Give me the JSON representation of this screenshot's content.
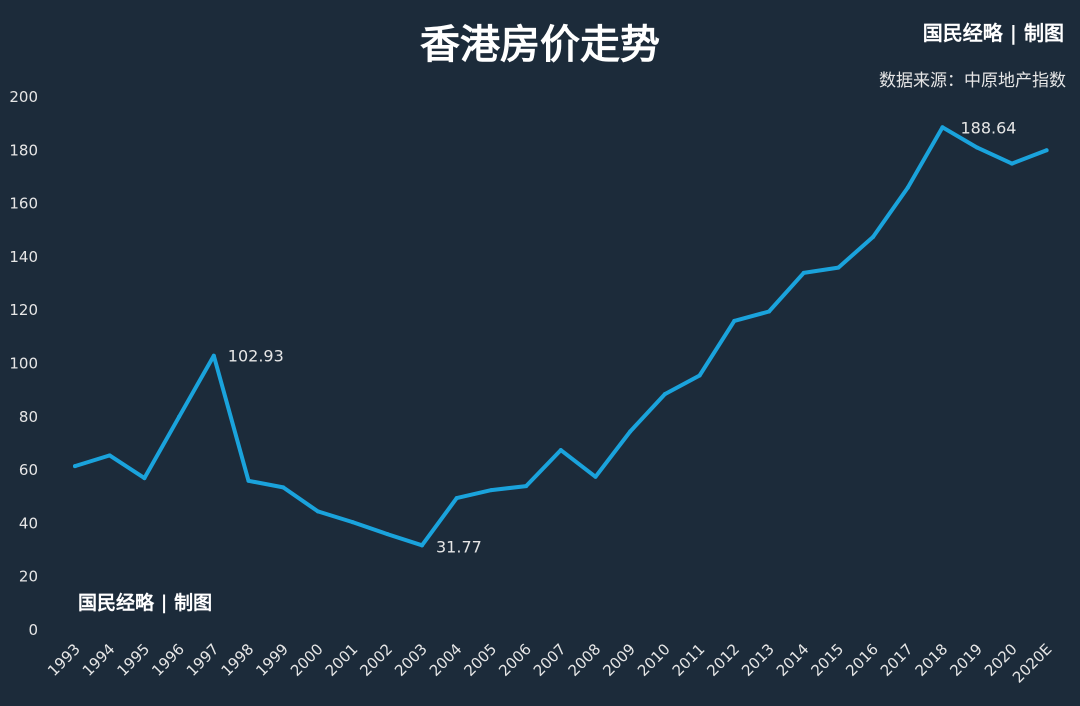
{
  "header": {
    "title": "香港房价走势",
    "brand": "国民经略 | 制图",
    "source": "数据来源：中原地产指数"
  },
  "watermark": {
    "text": "国民经略 | 制图"
  },
  "colors": {
    "background": "#1c2b3a",
    "line": "#1aa3dc",
    "text": "#e6e6e6"
  },
  "chart_data": {
    "type": "line",
    "title": "香港房价走势",
    "xlabel": "",
    "ylabel": "",
    "ylim": [
      0,
      200
    ],
    "yticks": [
      0,
      20,
      40,
      60,
      80,
      100,
      120,
      140,
      160,
      180,
      200
    ],
    "grid": false,
    "categories": [
      "1993",
      "1994",
      "1995",
      "1996",
      "1997",
      "1998",
      "1999",
      "2000",
      "2001",
      "2002",
      "2003",
      "2004",
      "2005",
      "2006",
      "2007",
      "2008",
      "2009",
      "2010",
      "2011",
      "2012",
      "2013",
      "2014",
      "2015",
      "2016",
      "2017",
      "2018",
      "2019",
      "2020",
      "2020E"
    ],
    "series": [
      {
        "values": [
          61.5,
          65.5,
          57,
          80,
          102.93,
          56,
          53.5,
          44.5,
          40.5,
          36,
          31.77,
          49.5,
          52.5,
          54,
          67.5,
          57.5,
          74.5,
          88.5,
          95.5,
          116,
          119.5,
          134,
          136,
          147.5,
          166,
          188.64,
          181,
          175,
          180
        ]
      }
    ],
    "annotations": [
      {
        "index": 4,
        "text": "102.93"
      },
      {
        "index": 10,
        "text": "31.77"
      },
      {
        "index": 25,
        "text": "188.64"
      }
    ]
  }
}
